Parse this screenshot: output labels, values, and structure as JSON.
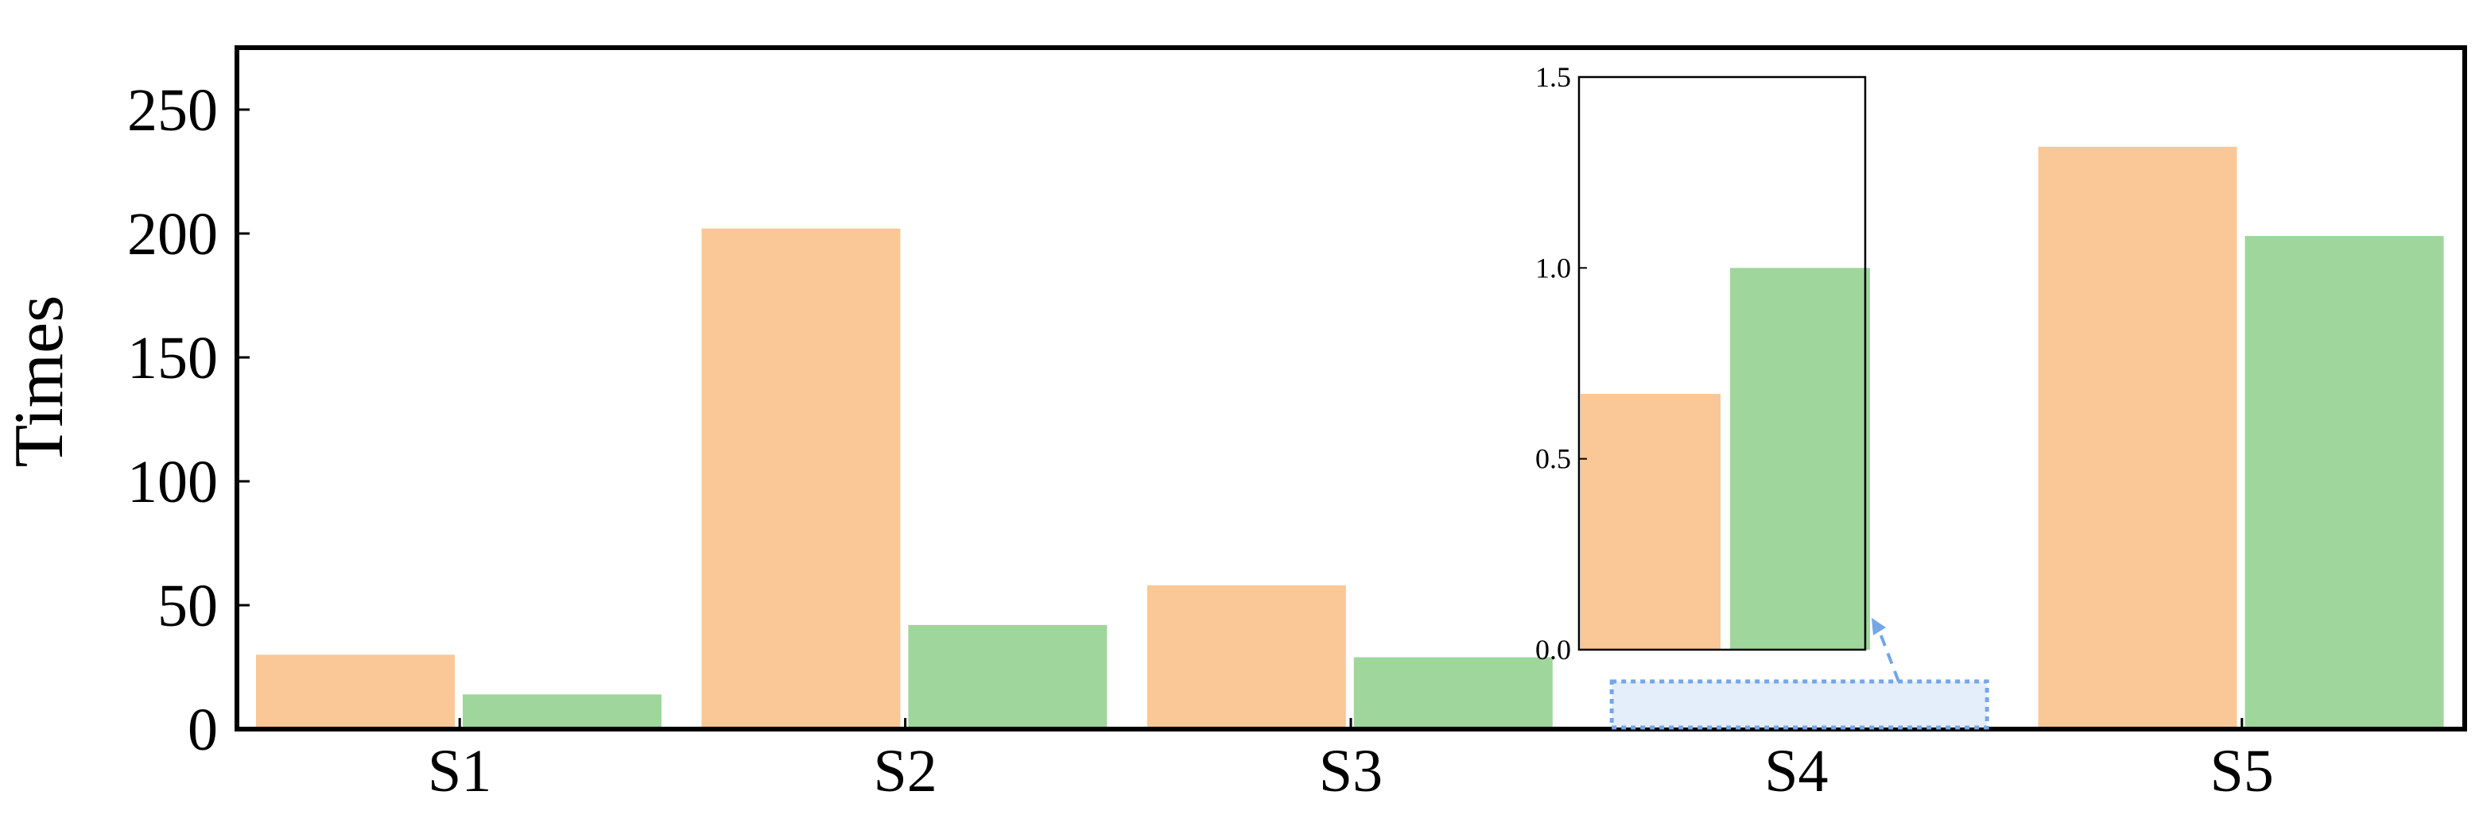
{
  "chart_data": {
    "type": "bar",
    "categories": [
      "S1",
      "S2",
      "S3",
      "S4",
      "S5"
    ],
    "series": [
      {
        "values": [
          30,
          202,
          58,
          0.67,
          235
        ],
        "color": "#FAC796"
      },
      {
        "values": [
          14,
          42,
          29,
          1.0,
          199
        ],
        "color": "#9FD69C"
      }
    ],
    "xlabel": "",
    "ylabel": "Times",
    "ylim": [
      0,
      275
    ],
    "yticks": [
      0,
      50,
      100,
      150,
      200,
      250
    ],
    "grid": false,
    "inset": {
      "zoom_category": "S4",
      "ylim": [
        0,
        1.5
      ],
      "yticks": [
        "0.0",
        "0.5",
        "1.0",
        "1.5"
      ],
      "zoom_highlight_color": "#74A6E8"
    }
  }
}
